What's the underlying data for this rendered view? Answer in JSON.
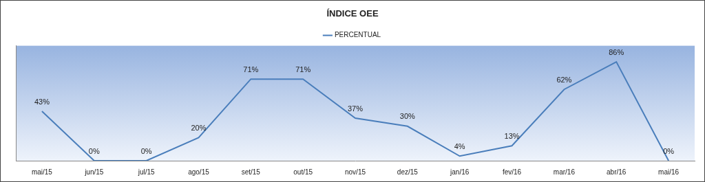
{
  "chart_data": {
    "type": "line",
    "title": "ÍNDICE OEE",
    "categories": [
      "mai/15",
      "jun/15",
      "jul/15",
      "ago/15",
      "set/15",
      "out/15",
      "nov/15",
      "dez/15",
      "jan/16",
      "fev/16",
      "mar/16",
      "abr/16",
      "mai/16"
    ],
    "series": [
      {
        "name": "PERCENTUAL",
        "color": "#4a7ebb",
        "values": [
          43,
          0,
          0,
          20,
          71,
          71,
          37,
          30,
          4,
          13,
          62,
          86,
          0
        ],
        "value_labels": [
          "43%",
          "0%",
          "0%",
          "20%",
          "71%",
          "71%",
          "37%",
          "30%",
          "4%",
          "13%",
          "62%",
          "86%",
          "0%"
        ]
      }
    ],
    "ylim": [
      0,
      100
    ],
    "grid": false,
    "legend": "top",
    "data_labels": true,
    "tick_labels": "x"
  }
}
